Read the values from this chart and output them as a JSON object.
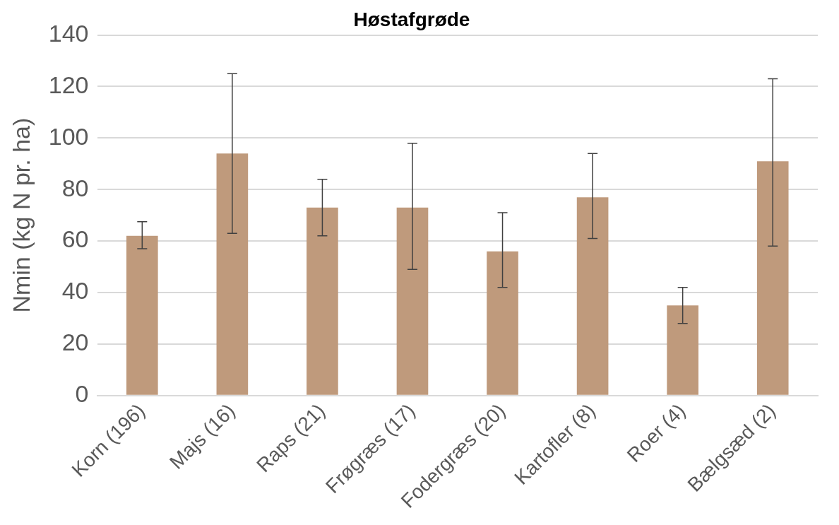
{
  "chart_data": {
    "type": "bar",
    "title": "Høstafgrøde",
    "ylabel": "Nmin (kg N pr. ha)",
    "categories": [
      "Korn (196)",
      "Majs (16)",
      "Raps (21)",
      "Frøgræs (17)",
      "Fodergræs (20)",
      "Kartofler (8)",
      "Roer (4)",
      "Bælgsæd (2)"
    ],
    "values": [
      62,
      94,
      73,
      73,
      56,
      77,
      35,
      91
    ],
    "errors": [
      [
        57,
        67.5
      ],
      [
        63,
        125
      ],
      [
        62,
        84
      ],
      [
        49,
        98
      ],
      [
        42,
        71
      ],
      [
        61,
        94
      ],
      [
        28,
        42
      ],
      [
        58,
        123
      ]
    ],
    "color": "#bf9a7c",
    "ylim": [
      0,
      140
    ],
    "yticks": [
      0,
      20,
      40,
      60,
      80,
      100,
      120,
      140
    ],
    "grid": "y",
    "legend": false
  }
}
